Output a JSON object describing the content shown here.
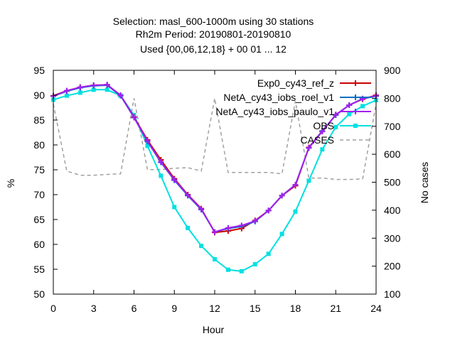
{
  "chart_data": {
    "type": "line",
    "title_lines": [
      "Selection: masl_600-1000m using    30 stations",
      "Rh2m   Period: 20190801-20190810",
      "Used {00,06,12,18} + 00 01 ... 12"
    ],
    "xlabel": "Hour",
    "ylabel": "%",
    "y2label": "No cases",
    "xlim": [
      0,
      24
    ],
    "ylim": [
      50,
      95
    ],
    "y2lim": [
      100,
      900
    ],
    "xticks": [
      0,
      3,
      6,
      9,
      12,
      15,
      18,
      21,
      24
    ],
    "yticks": [
      50,
      55,
      60,
      65,
      70,
      75,
      80,
      85,
      90,
      95
    ],
    "y2ticks": [
      100,
      200,
      300,
      400,
      500,
      600,
      700,
      800,
      900
    ],
    "legend_position": "top-right",
    "grid": false,
    "series": [
      {
        "name": "Exp0_cy43_ref_z",
        "color": "#cc0000",
        "marker": "plus",
        "axis": "y1",
        "x": [
          0,
          1,
          2,
          3,
          4,
          5,
          6,
          7,
          8,
          9,
          10,
          11,
          12,
          13,
          14,
          15,
          16,
          17,
          18,
          19,
          20,
          21,
          22,
          23,
          24
        ],
        "values": [
          89.9,
          90.9,
          91.6,
          92.0,
          92.1,
          90.0,
          85.6,
          81.0,
          77.0,
          73.2,
          70.0,
          67.2,
          62.4,
          62.7,
          63.2,
          64.8,
          66.8,
          69.8,
          71.8,
          79.5,
          82.8,
          86.0,
          88.0,
          89.2,
          90.0
        ]
      },
      {
        "name": "NetA_cy43_iobs_roel_v1",
        "color": "#0070c0",
        "marker": "plus",
        "axis": "y1",
        "x": [
          0,
          1,
          2,
          3,
          4,
          5,
          6,
          7,
          8,
          9,
          10,
          11,
          12,
          13,
          14,
          15,
          16,
          17,
          18,
          19,
          20,
          21,
          22,
          23,
          24
        ],
        "values": [
          89.8,
          90.8,
          91.5,
          91.9,
          92.0,
          89.9,
          85.5,
          80.7,
          76.5,
          72.9,
          69.8,
          67.0,
          62.5,
          63.2,
          63.6,
          64.6,
          66.8,
          69.8,
          72.0,
          79.4,
          82.8,
          86.0,
          88.0,
          89.3,
          89.8
        ]
      },
      {
        "name": "NetA_cy43_iobs_paulo_v1",
        "color": "#a020f0",
        "marker": "plus",
        "axis": "y1",
        "x": [
          0,
          1,
          2,
          3,
          4,
          5,
          6,
          7,
          8,
          9,
          10,
          11,
          12,
          13,
          14,
          15,
          16,
          17,
          18,
          19,
          20,
          21,
          22,
          23,
          24
        ],
        "values": [
          89.8,
          90.9,
          91.6,
          92.0,
          92.1,
          90.0,
          85.5,
          80.8,
          76.6,
          73.0,
          69.9,
          67.1,
          62.5,
          63.3,
          63.8,
          64.7,
          66.8,
          69.8,
          72.0,
          79.4,
          82.7,
          86.1,
          88.0,
          89.3,
          89.9
        ]
      },
      {
        "name": "OBS",
        "color": "#00e0e0",
        "marker": "square",
        "axis": "y1",
        "x": [
          0,
          1,
          2,
          3,
          4,
          5,
          6,
          7,
          8,
          9,
          10,
          11,
          12,
          13,
          14,
          15,
          16,
          17,
          18,
          19,
          20,
          21,
          22,
          23,
          24
        ],
        "values": [
          89.1,
          89.9,
          90.5,
          91.1,
          91.1,
          89.9,
          86.0,
          79.8,
          73.8,
          67.5,
          63.3,
          59.7,
          57.0,
          54.9,
          54.6,
          56.0,
          58.1,
          62.1,
          66.6,
          72.8,
          79.1,
          83.6,
          86.2,
          87.8,
          89.0
        ]
      },
      {
        "name": "CASES",
        "color": "#a0a0a0",
        "marker": "none",
        "dashed": true,
        "axis": "y2",
        "x": [
          0,
          1,
          2,
          3,
          4,
          5,
          6,
          7,
          8,
          9,
          10,
          11,
          12,
          13,
          14,
          15,
          16,
          17,
          18,
          19,
          20,
          21,
          22,
          23,
          24
        ],
        "values": [
          780,
          540,
          525,
          525,
          528,
          530,
          800,
          545,
          545,
          550,
          552,
          540,
          800,
          535,
          535,
          535,
          535,
          530,
          790,
          515,
          515,
          510,
          510,
          512,
          780
        ]
      }
    ]
  }
}
